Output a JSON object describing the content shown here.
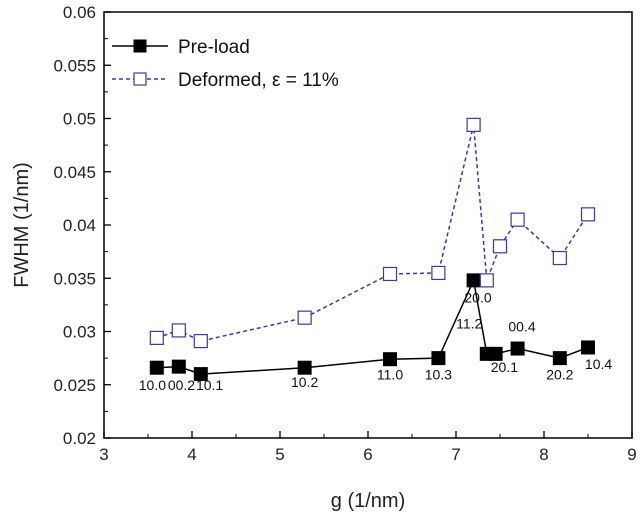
{
  "chart_data": {
    "type": "line",
    "xlabel": "g (1/nm)",
    "ylabel": "FWHM (1/nm)",
    "xlim": [
      3,
      9
    ],
    "ylim": [
      0.02,
      0.06
    ],
    "xticks": [
      3,
      4,
      5,
      6,
      7,
      8,
      9
    ],
    "yticks": [
      0.02,
      0.025,
      0.03,
      0.035,
      0.04,
      0.045,
      0.05,
      0.055,
      0.06
    ],
    "ytick_labels": [
      "0.02",
      "0.025",
      "0.03",
      "0.035",
      "0.04",
      "0.045",
      "0.05",
      "0.055",
      "0.06"
    ],
    "legend_position": "top-left",
    "series": [
      {
        "name": "Pre-load",
        "color": "#000000",
        "line_style": "solid",
        "marker": "filled-square",
        "x": [
          3.6,
          3.85,
          4.1,
          5.28,
          6.25,
          6.8,
          7.2,
          7.35,
          7.45,
          7.7,
          8.18,
          8.5
        ],
        "y": [
          0.0266,
          0.0267,
          0.026,
          0.0266,
          0.0274,
          0.0275,
          0.0348,
          0.0279,
          0.0279,
          0.0284,
          0.0275,
          0.0285
        ]
      },
      {
        "name": "Deformed, ε = 11%",
        "color": "#3a3a9a",
        "line_style": "dashed",
        "marker": "open-square",
        "x": [
          3.6,
          3.85,
          4.1,
          5.28,
          6.25,
          6.8,
          7.2,
          7.35,
          7.5,
          7.7,
          8.18,
          8.5
        ],
        "y": [
          0.0294,
          0.0301,
          0.0291,
          0.0313,
          0.0354,
          0.0355,
          0.0494,
          0.0348,
          0.038,
          0.0405,
          0.0369,
          0.041
        ]
      }
    ],
    "annotations": [
      {
        "text": "10.0",
        "x": 3.55,
        "y": 0.0245
      },
      {
        "text": "00.2",
        "x": 3.88,
        "y": 0.0245
      },
      {
        "text": "10.1",
        "x": 4.2,
        "y": 0.0245
      },
      {
        "text": "10.2",
        "x": 5.28,
        "y": 0.0248
      },
      {
        "text": "11.0",
        "x": 6.25,
        "y": 0.0255
      },
      {
        "text": "10.3",
        "x": 6.8,
        "y": 0.0255
      },
      {
        "text": "20.0",
        "x": 7.25,
        "y": 0.0327
      },
      {
        "text": "11.2",
        "x": 7.15,
        "y": 0.0303
      },
      {
        "text": "00.4",
        "x": 7.75,
        "y": 0.03
      },
      {
        "text": "20.1",
        "x": 7.55,
        "y": 0.0262
      },
      {
        "text": "20.2",
        "x": 8.18,
        "y": 0.0255
      },
      {
        "text": "10.4",
        "x": 8.62,
        "y": 0.0265
      }
    ]
  }
}
